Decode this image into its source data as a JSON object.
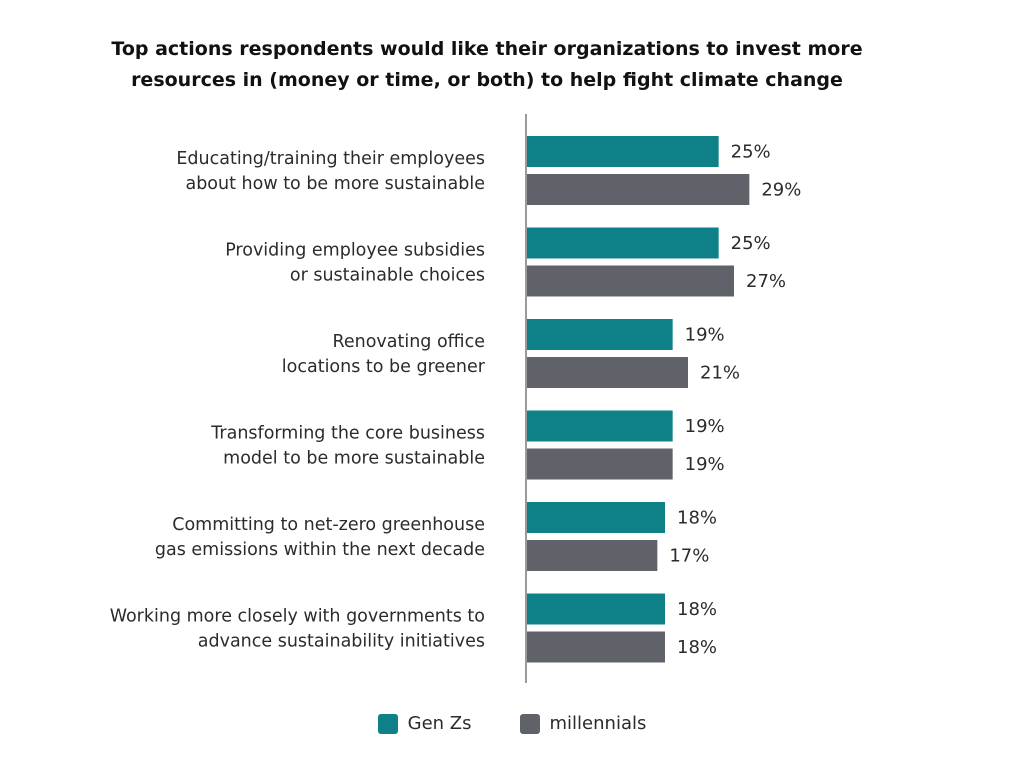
{
  "chart_data": {
    "type": "bar",
    "orientation": "horizontal",
    "title": [
      "Top actions respondents would like their organizations to invest more",
      "resources in (money or time, or both) to help fight climate change"
    ],
    "categories": [
      [
        "Educating/training their employees",
        "about how to be more sustainable"
      ],
      [
        "Providing employee subsidies",
        "or sustainable choices"
      ],
      [
        "Renovating office",
        "locations to be greener"
      ],
      [
        "Transforming the core business",
        "model to be more sustainable"
      ],
      [
        "Committing to net-zero greenhouse",
        "gas emissions within the next decade"
      ],
      [
        "Working more closely with governments to",
        "advance sustainability initiatives"
      ]
    ],
    "series": [
      {
        "name": "Gen Zs",
        "color": "#0e8188",
        "values": [
          25,
          25,
          19,
          19,
          18,
          18
        ],
        "labels": [
          "25%",
          "25%",
          "19%",
          "19%",
          "18%",
          "18%"
        ]
      },
      {
        "name": "millennials",
        "color": "#5f6369",
        "values": [
          29,
          27,
          21,
          19,
          17,
          18
        ],
        "labels": [
          "29%",
          "27%",
          "21%",
          "19%",
          "17%",
          "18%"
        ]
      }
    ],
    "value_unit": "%",
    "xlim": [
      0,
      30
    ],
    "grid": false,
    "legend_position": "bottom-center",
    "axis_color": "#9a9a9a"
  }
}
